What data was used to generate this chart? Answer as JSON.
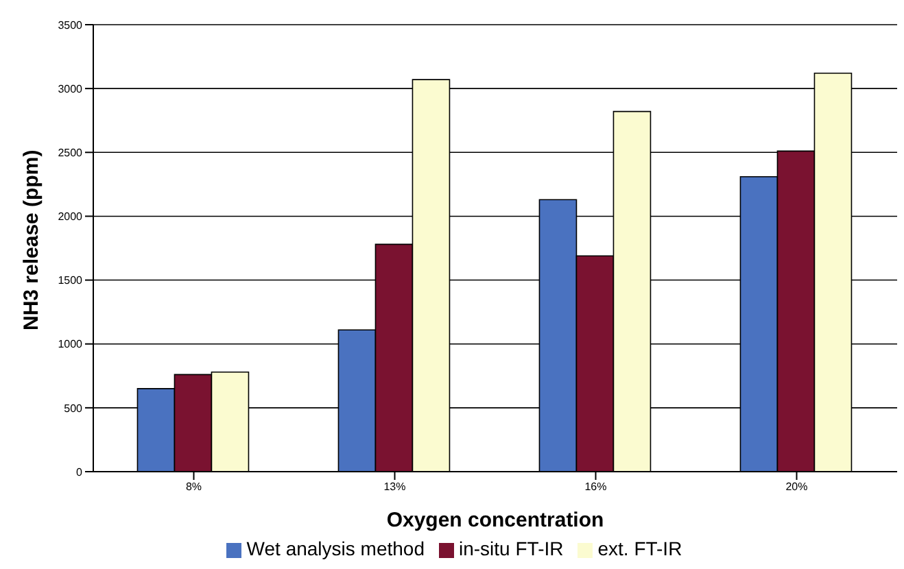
{
  "chart_data": {
    "type": "bar",
    "xlabel": "Oxygen concentration",
    "ylabel": "NH3 release (ppm)",
    "categories": [
      "8%",
      "13%",
      "16%",
      "20%"
    ],
    "series": [
      {
        "name": "Wet analysis method",
        "color": "#4a72c0",
        "values": [
          650,
          1110,
          2130,
          2310
        ]
      },
      {
        "name": "in-situ FT-IR",
        "color": "#7a1230",
        "values": [
          760,
          1780,
          1690,
          2510
        ]
      },
      {
        "name": "ext. FT-IR",
        "color": "#fbfbd0",
        "values": [
          780,
          3070,
          2820,
          3120
        ]
      }
    ],
    "ylim": [
      0,
      3500
    ],
    "yticks": [
      0,
      500,
      1000,
      1500,
      2000,
      2500,
      3000,
      3500
    ],
    "grid": "y",
    "legend": "bottom"
  }
}
